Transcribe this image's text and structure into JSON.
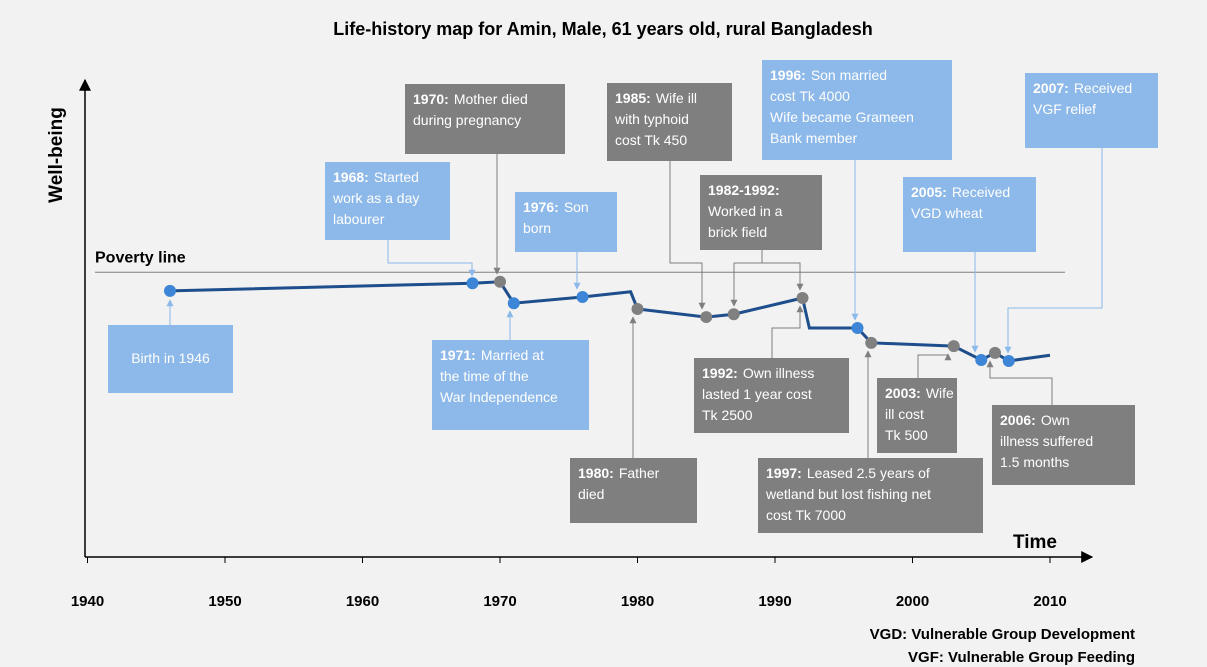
{
  "chart_data": {
    "type": "line",
    "title": "Life-history map for Amin, Male, 61 years old, rural Bangladesh",
    "ylabel": "Well-being",
    "xlabel": "Time",
    "xlim": [
      1940,
      2010
    ],
    "xticks": [
      1940,
      1950,
      1960,
      1970,
      1980,
      1990,
      2000,
      2010
    ],
    "ylim": [
      0,
      100
    ],
    "poverty_line": {
      "label": "Poverty line",
      "value": 59.7
    },
    "series": [
      {
        "color": "#1f4e8c",
        "x": [
          1946,
          1968,
          1970,
          1971,
          1976,
          1979.5,
          1980,
          1985,
          1987,
          1992,
          1992.5,
          1996,
          1997,
          2003,
          2005,
          2006,
          2007,
          2010
        ],
        "values": [
          55.8,
          57.4,
          57.7,
          53.2,
          54.5,
          55.6,
          52.0,
          50.3,
          50.9,
          54.3,
          48.0,
          48.0,
          44.9,
          44.2,
          41.3,
          42.8,
          41.1,
          42.3
        ]
      }
    ],
    "events": [
      {
        "lines": [
          "Birth in 1946"
        ]
      },
      {
        "date": "1968:",
        "lines": [
          "Started",
          "work as a day",
          "labourer"
        ]
      },
      {
        "date": "1970:",
        "lines": [
          "Mother died",
          "during pregnancy"
        ]
      },
      {
        "date": "1971:",
        "lines": [
          "Married at",
          "the time of the",
          "War Independence"
        ]
      },
      {
        "date": "1976:",
        "lines": [
          "Son",
          "born"
        ]
      },
      {
        "date": "1980:",
        "lines": [
          "Father",
          "died"
        ]
      },
      {
        "date": "1985:",
        "lines": [
          "Wife ill",
          "with typhoid",
          "cost Tk 450"
        ]
      },
      {
        "date": "1982-1992:",
        "lines": [
          "Worked in a",
          "brick field"
        ]
      },
      {
        "date": "1992:",
        "lines": [
          "Own illness",
          "lasted 1 year cost",
          "Tk 2500"
        ]
      },
      {
        "date": "1996:",
        "lines": [
          "Son married",
          "cost Tk 4000",
          "Wife became Grameen",
          "Bank member"
        ]
      },
      {
        "date": "1997:",
        "lines": [
          "Leased 2.5 years of",
          "wetland but lost fishing net",
          "cost Tk 7000"
        ]
      },
      {
        "date": "2003:",
        "lines": [
          "Wife",
          "ill cost",
          "Tk 500"
        ]
      },
      {
        "date": "2005:",
        "lines": [
          "Received",
          "VGD wheat"
        ]
      },
      {
        "date": "2006:",
        "lines": [
          "Own",
          "illness suffered",
          "1.5 months"
        ]
      },
      {
        "date": "2007:",
        "lines": [
          "Received",
          "VGF relief"
        ]
      }
    ],
    "footnotes": [
      "VGD: Vulnerable Group Development",
      "VGF: Vulnerable Group Feeding"
    ]
  }
}
